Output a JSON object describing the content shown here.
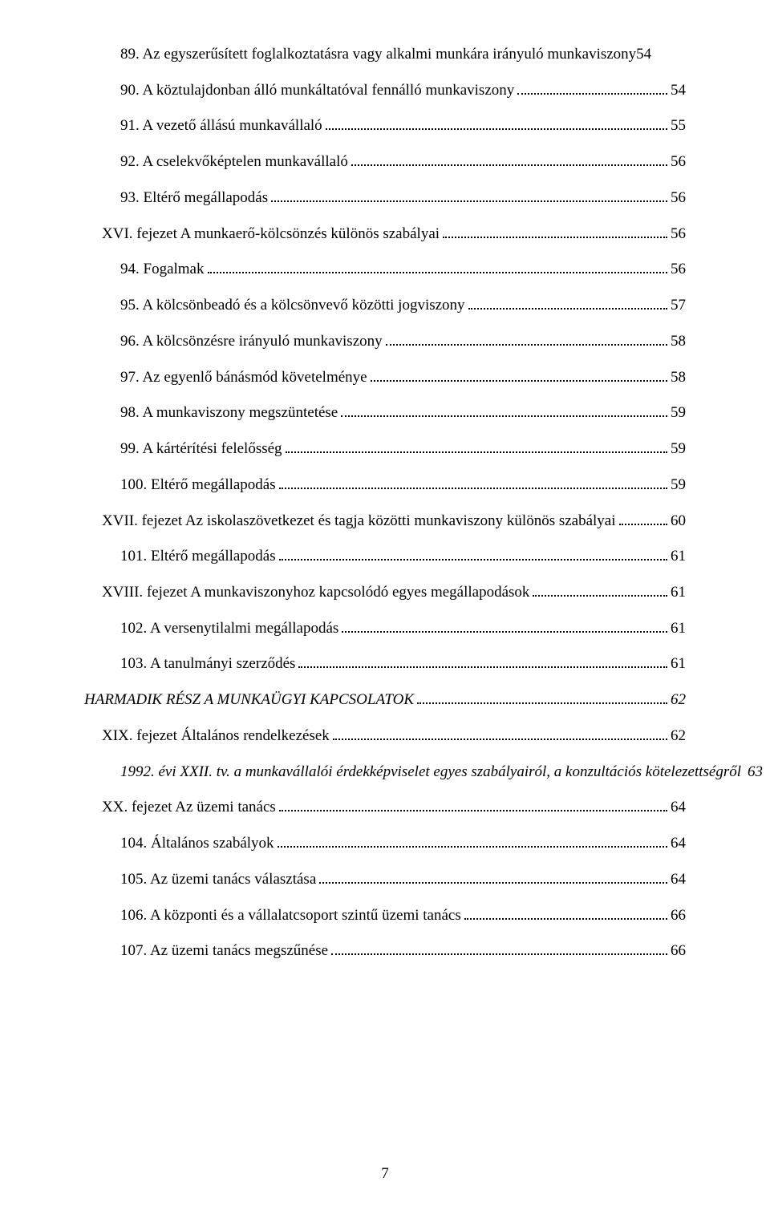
{
  "page_number": "7",
  "font_family": "Times New Roman",
  "base_font_size_pt": 14,
  "text_color": "#000000",
  "background_color": "#ffffff",
  "dot_color": "#000000",
  "toc": [
    {
      "indent": 2,
      "italic": false,
      "label": "89. Az egyszerűsített foglalkoztatásra vagy alkalmi munkára irányuló munkaviszony",
      "page": "54",
      "dots": false
    },
    {
      "indent": 2,
      "italic": false,
      "label": "90. A köztulajdonban álló munkáltatóval fennálló munkaviszony",
      "page": "54",
      "dots": true
    },
    {
      "indent": 2,
      "italic": false,
      "label": "91. A vezető állású munkavállaló",
      "page": "55",
      "dots": true
    },
    {
      "indent": 2,
      "italic": false,
      "label": "92. A cselekvőképtelen munkavállaló",
      "page": "56",
      "dots": true
    },
    {
      "indent": 2,
      "italic": false,
      "label": "93. Eltérő megállapodás",
      "page": "56",
      "dots": true
    },
    {
      "indent": 1,
      "italic": false,
      "label": "XVI. fejezet A munkaerő-kölcsönzés különös szabályai",
      "page": "56",
      "dots": true
    },
    {
      "indent": 2,
      "italic": false,
      "label": "94. Fogalmak",
      "page": "56",
      "dots": true
    },
    {
      "indent": 2,
      "italic": false,
      "label": "95. A kölcsönbeadó és a kölcsönvevő közötti jogviszony",
      "page": "57",
      "dots": true
    },
    {
      "indent": 2,
      "italic": false,
      "label": "96. A kölcsönzésre irányuló munkaviszony",
      "page": "58",
      "dots": true
    },
    {
      "indent": 2,
      "italic": false,
      "label": "97. Az egyenlő bánásmód követelménye",
      "page": "58",
      "dots": true
    },
    {
      "indent": 2,
      "italic": false,
      "label": "98. A munkaviszony megszüntetése",
      "page": "59",
      "dots": true
    },
    {
      "indent": 2,
      "italic": false,
      "label": "99. A kártérítési felelősség",
      "page": "59",
      "dots": true
    },
    {
      "indent": 2,
      "italic": false,
      "label": "100. Eltérő megállapodás",
      "page": "59",
      "dots": true
    },
    {
      "indent": 1,
      "italic": false,
      "label": "XVII. fejezet Az iskolaszövetkezet és tagja közötti munkaviszony különös szabályai",
      "page": "60",
      "dots": true
    },
    {
      "indent": 2,
      "italic": false,
      "label": "101. Eltérő megállapodás",
      "page": "61",
      "dots": true
    },
    {
      "indent": 1,
      "italic": false,
      "label": "XVIII. fejezet A munkaviszonyhoz kapcsolódó egyes megállapodások",
      "page": "61",
      "dots": true
    },
    {
      "indent": 2,
      "italic": false,
      "label": "102. A versenytilalmi megállapodás",
      "page": "61",
      "dots": true
    },
    {
      "indent": 2,
      "italic": false,
      "label": "103. A tanulmányi szerződés",
      "page": "61",
      "dots": true
    },
    {
      "indent": 0,
      "italic": true,
      "label": "HARMADIK RÉSZ A MUNKAÜGYI KAPCSOLATOK",
      "page": "62",
      "dots": true
    },
    {
      "indent": 1,
      "italic": false,
      "label": "XIX. fejezet Általános rendelkezések",
      "page": "62",
      "dots": true
    },
    {
      "indent": 2,
      "italic": true,
      "label": "1992. évi XXII. tv. a munkavállalói érdekképviselet egyes szabályairól, a konzultációs kötelezettségről",
      "page": "63",
      "dots": true
    },
    {
      "indent": 1,
      "italic": false,
      "label": "XX. fejezet Az üzemi tanács",
      "page": "64",
      "dots": true,
      "underline_segment": " "
    },
    {
      "indent": 2,
      "italic": false,
      "label": "104. Általános szabályok",
      "page": "64",
      "dots": true
    },
    {
      "indent": 2,
      "italic": false,
      "label": "105. Az üzemi tanács választása",
      "page": "64",
      "dots": true
    },
    {
      "indent": 2,
      "italic": false,
      "label": "106. A központi és a vállalatcsoport szintű üzemi tanács",
      "page": "66",
      "dots": true
    },
    {
      "indent": 2,
      "italic": false,
      "label": "107. Az üzemi tanács megszűnése",
      "page": "66",
      "dots": true
    }
  ]
}
